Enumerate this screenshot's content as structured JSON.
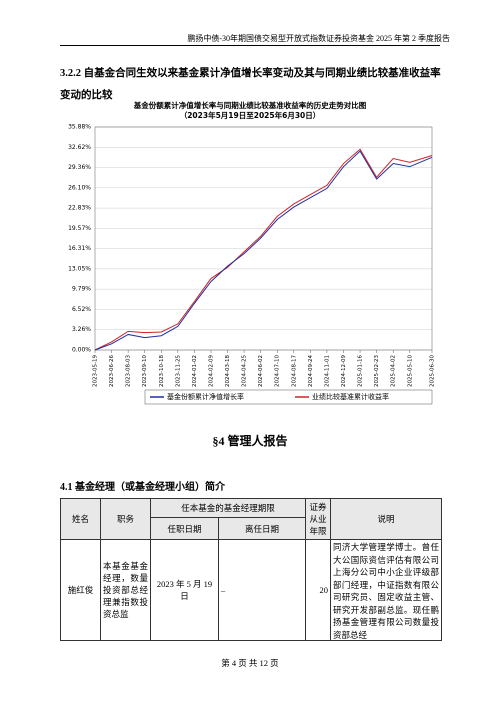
{
  "header": {
    "title": "鹏扬中债-30年期国债交易型开放式指数证券投资基金 2025 年第 2 季度报告"
  },
  "section": {
    "title": "3.2.2 自基金合同生效以来基金累计净值增长率变动及其与同期业绩比较基准收益率变动的比较"
  },
  "chart_data": {
    "type": "line",
    "title": "基金份额累计净值增长率与同期业绩比较基准收益率的历史走势对比图",
    "subtitle": "（2023年5月19日至2025年6月30日）",
    "categories": [
      "2023-05-19",
      "2023-06-26",
      "2023-08-03",
      "2023-09-10",
      "2023-10-18",
      "2023-11-25",
      "2024-01-02",
      "2024-02-09",
      "2024-03-18",
      "2024-04-25",
      "2024-06-02",
      "2024-07-10",
      "2024-08-17",
      "2024-09-24",
      "2024-11-01",
      "2024-12-09",
      "2025-01-16",
      "2025-02-23",
      "2025-04-02",
      "2025-05-10",
      "2025-06-30"
    ],
    "series": [
      {
        "name": "基金份额累计净值增长率",
        "color": "#1f2f9e",
        "values": [
          0,
          1.0,
          2.5,
          2.0,
          2.3,
          3.8,
          7.5,
          11.0,
          13.5,
          15.5,
          18.0,
          21.0,
          23.0,
          24.5,
          26.0,
          29.5,
          32.0,
          27.5,
          30.0,
          29.5,
          31.0
        ]
      },
      {
        "name": "业绩比较基准累计收益率",
        "color": "#d0202a",
        "values": [
          0,
          1.3,
          3.0,
          2.8,
          2.9,
          4.2,
          7.8,
          11.5,
          13.3,
          15.8,
          18.3,
          21.5,
          23.5,
          25.0,
          26.5,
          30.0,
          32.3,
          27.8,
          30.8,
          30.2,
          31.3
        ]
      }
    ],
    "ylim": [
      0,
      35.88
    ],
    "yticks": [
      {
        "value": 0,
        "label": "0.00%"
      },
      {
        "value": 3.26,
        "label": "3.26%"
      },
      {
        "value": 6.52,
        "label": "6.52%"
      },
      {
        "value": 9.79,
        "label": "9.79%"
      },
      {
        "value": 13.05,
        "label": "13.05%"
      },
      {
        "value": 16.31,
        "label": "16.31%"
      },
      {
        "value": 19.57,
        "label": "19.57%"
      },
      {
        "value": 22.83,
        "label": "22.83%"
      },
      {
        "value": 26.1,
        "label": "26.10%"
      },
      {
        "value": 29.36,
        "label": "29.36%"
      },
      {
        "value": 32.62,
        "label": "32.62%"
      },
      {
        "value": 35.88,
        "label": "35.88%"
      }
    ],
    "grid": true
  },
  "section4": {
    "title": "§4 管理人报告"
  },
  "section41": {
    "title": "4.1 基金经理（或基金经理小组）简介"
  },
  "table": {
    "header": [
      "姓名",
      "职务",
      "任本基金的基金经理期限",
      "证券从业年限",
      "说明"
    ],
    "subheader": [
      "任职日期",
      "离任日期"
    ],
    "rows": [
      [
        "施红俊",
        "本基金基金经理，数量投资部总经理兼指数投资总监",
        "2023 年 5 月 19 日",
        "–",
        "20",
        "同济大学管理学博士。曾任大公国际资信评估有限公司上海分公司中小企业评级部部门经理，中证指数有限公司研究员、固定收益主管、研究开发部副总监。现任鹏扬基金管理有限公司数量投资部总经"
      ]
    ]
  },
  "footer": {
    "text": "第 4 页 共 12 页"
  }
}
